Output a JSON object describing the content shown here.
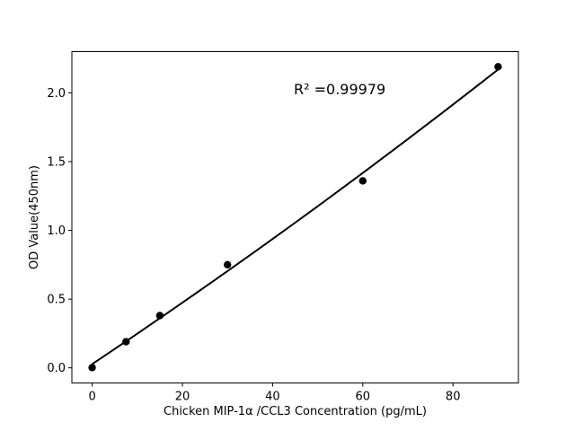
{
  "chart_data": {
    "type": "scatter",
    "title": "",
    "xlabel": "Chicken MIP-1α /CCL3 Concentration (pg/mL)",
    "ylabel": "OD Value(450nm)",
    "annotation": "R² =0.99979",
    "x": [
      0,
      7.5,
      15,
      30,
      60,
      90
    ],
    "y": [
      0.002,
      0.19,
      0.38,
      0.75,
      1.36,
      2.19
    ],
    "fit": "quadratic",
    "fit_line": true,
    "x_ticks": [
      "0",
      "20",
      "40",
      "60",
      "80"
    ],
    "y_ticks": [
      "0.0",
      "0.5",
      "1.0",
      "1.5",
      "2.0"
    ],
    "xlim": [
      -4.5,
      94.5
    ],
    "ylim": [
      -0.11,
      2.3
    ],
    "point_color": "#000000",
    "line_color": "#000000",
    "background": "#ffffff",
    "grid": false,
    "legend": false
  }
}
